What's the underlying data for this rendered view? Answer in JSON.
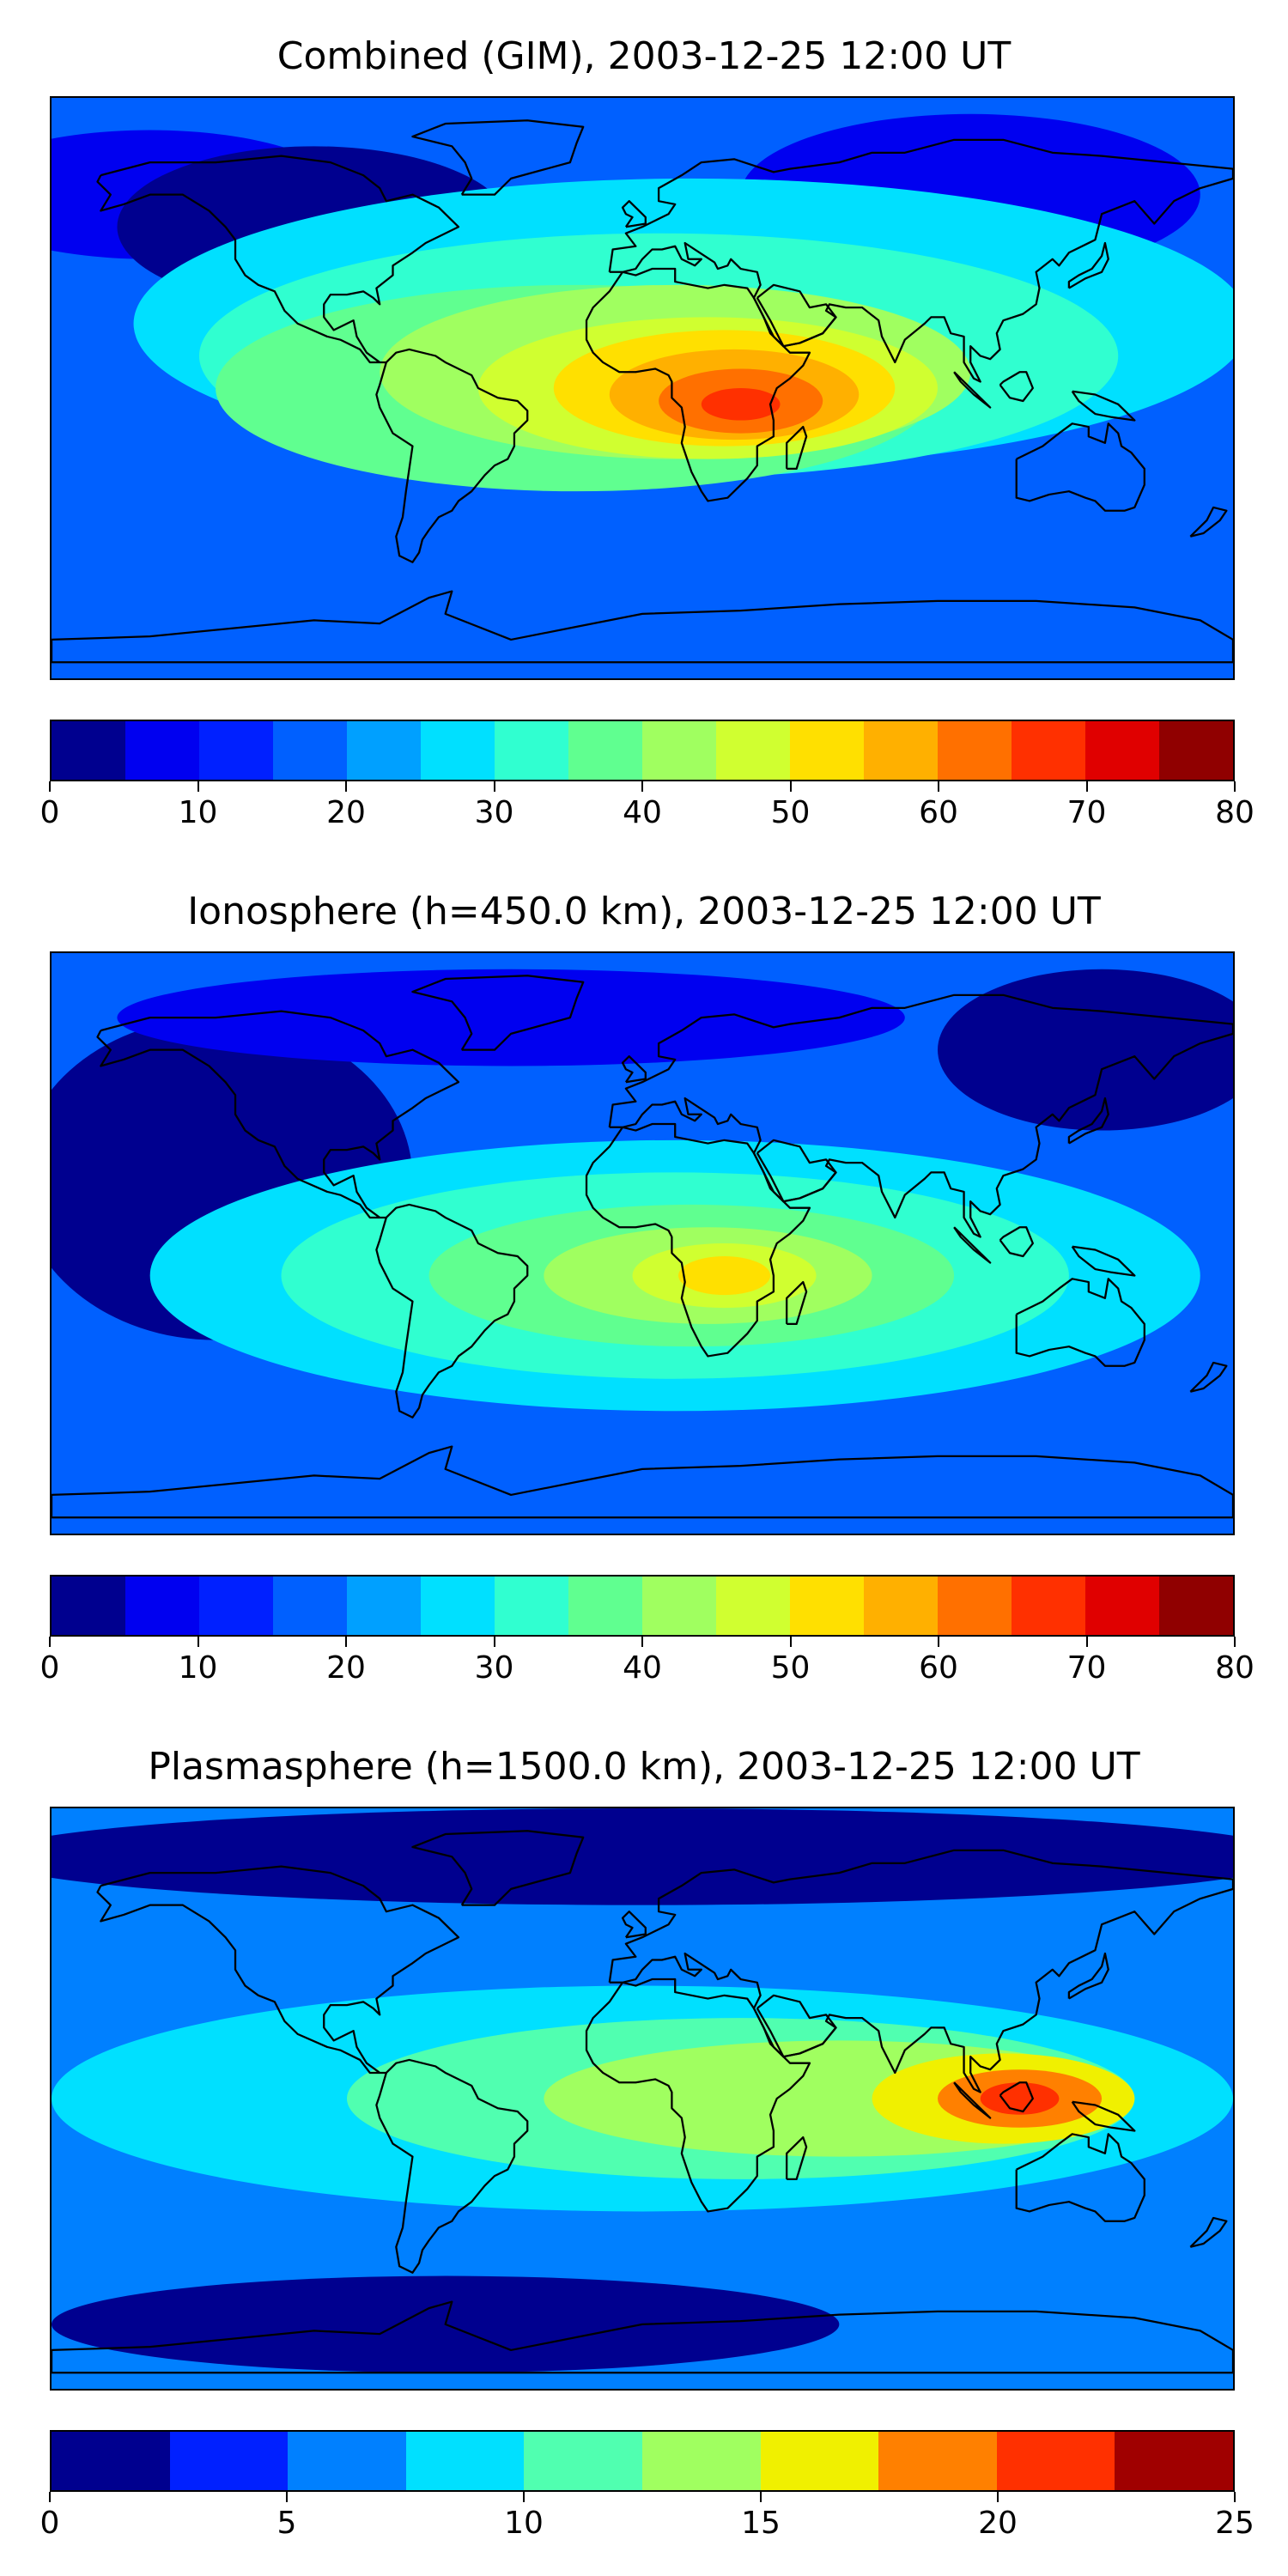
{
  "panels": [
    {
      "title": "Combined (GIM), 2003-12-25 12:00 UT",
      "colorbar": {
        "min": 0,
        "max": 80,
        "step": 5,
        "tick_labels": [
          "0",
          "10",
          "20",
          "30",
          "40",
          "50",
          "60",
          "70",
          "80"
        ]
      },
      "field": {
        "background_level": 3,
        "blobs": [
          {
            "lon": 15,
            "lat": 20,
            "rx": 170,
            "ry": 45,
            "level": 5
          },
          {
            "lon": 5,
            "lat": 10,
            "rx": 140,
            "ry": 38,
            "level": 6
          },
          {
            "lon": -20,
            "lat": 0,
            "rx": 110,
            "ry": 32,
            "level": 7
          },
          {
            "lon": 10,
            "lat": 5,
            "rx": 90,
            "ry": 27,
            "level": 8
          },
          {
            "lon": 20,
            "lat": 0,
            "rx": 70,
            "ry": 22,
            "level": 9
          },
          {
            "lon": 25,
            "lat": 0,
            "rx": 52,
            "ry": 18,
            "level": 10
          },
          {
            "lon": 28,
            "lat": -2,
            "rx": 38,
            "ry": 14,
            "level": 11
          },
          {
            "lon": 30,
            "lat": -4,
            "rx": 25,
            "ry": 10,
            "level": 12
          },
          {
            "lon": 30,
            "lat": -5,
            "rx": 12,
            "ry": 5,
            "level": 13
          }
        ],
        "cold_spots": [
          {
            "lon": -150,
            "lat": 60,
            "rx": 60,
            "ry": 20,
            "level": 1
          },
          {
            "lon": 100,
            "lat": 60,
            "rx": 70,
            "ry": 25,
            "level": 1
          },
          {
            "lon": -100,
            "lat": 50,
            "rx": 60,
            "ry": 25,
            "level": 0
          }
        ]
      }
    },
    {
      "title": "Ionosphere  (h=450.0 km), 2003-12-25 12:00 UT",
      "colorbar": {
        "min": 0,
        "max": 80,
        "step": 5,
        "tick_labels": [
          "0",
          "10",
          "20",
          "30",
          "40",
          "50",
          "60",
          "70",
          "80"
        ]
      },
      "field": {
        "background_level": 3,
        "blobs": [
          {
            "lon": 10,
            "lat": -10,
            "rx": 160,
            "ry": 42,
            "level": 5
          },
          {
            "lon": 10,
            "lat": -10,
            "rx": 120,
            "ry": 32,
            "level": 6
          },
          {
            "lon": 15,
            "lat": -10,
            "rx": 80,
            "ry": 22,
            "level": 7
          },
          {
            "lon": 20,
            "lat": -10,
            "rx": 50,
            "ry": 15,
            "level": 8
          },
          {
            "lon": 25,
            "lat": -10,
            "rx": 28,
            "ry": 10,
            "level": 9
          },
          {
            "lon": 25,
            "lat": -10,
            "rx": 14,
            "ry": 6,
            "level": 10
          }
        ],
        "cold_spots": [
          {
            "lon": -130,
            "lat": 20,
            "rx": 60,
            "ry": 50,
            "level": 0
          },
          {
            "lon": 140,
            "lat": 60,
            "rx": 50,
            "ry": 25,
            "level": 0
          },
          {
            "lon": -40,
            "lat": 70,
            "rx": 120,
            "ry": 15,
            "level": 1
          }
        ]
      }
    },
    {
      "title": "Plasmasphere (h=1500.0 km), 2003-12-25 12:00 UT",
      "colorbar": {
        "min": 0,
        "max": 25,
        "step": 2.5,
        "tick_labels": [
          "0",
          "5",
          "10",
          "15",
          "20",
          "25"
        ]
      },
      "field": {
        "background_level": 2,
        "blobs": [
          {
            "lon": 0,
            "lat": 0,
            "rx": 180,
            "ry": 35,
            "level": 3
          },
          {
            "lon": 30,
            "lat": 0,
            "rx": 120,
            "ry": 25,
            "level": 4
          },
          {
            "lon": 60,
            "lat": 0,
            "rx": 90,
            "ry": 18,
            "level": 5
          },
          {
            "lon": 110,
            "lat": 0,
            "rx": 40,
            "ry": 14,
            "level": 6
          },
          {
            "lon": 115,
            "lat": 0,
            "rx": 25,
            "ry": 9,
            "level": 7
          },
          {
            "lon": 115,
            "lat": 0,
            "rx": 12,
            "ry": 5,
            "level": 8
          }
        ],
        "cold_spots": [
          {
            "lon": 0,
            "lat": 75,
            "rx": 200,
            "ry": 15,
            "level": 0
          },
          {
            "lon": -60,
            "lat": -70,
            "rx": 120,
            "ry": 15,
            "level": 0
          }
        ]
      }
    }
  ],
  "colors": {
    "levels_80": [
      "#00008f",
      "#0000f0",
      "#0020ff",
      "#0060ff",
      "#00a0ff",
      "#00e0ff",
      "#30ffd0",
      "#60ff90",
      "#a0ff60",
      "#d0ff30",
      "#ffe000",
      "#ffb000",
      "#ff7000",
      "#ff3000",
      "#e00000",
      "#900000"
    ],
    "levels_25": [
      "#00008f",
      "#0020ff",
      "#0080ff",
      "#00e0ff",
      "#50ffb0",
      "#a0ff60",
      "#f0f000",
      "#ff8000",
      "#ff3000",
      "#a00000"
    ],
    "coastline": "#000000"
  }
}
